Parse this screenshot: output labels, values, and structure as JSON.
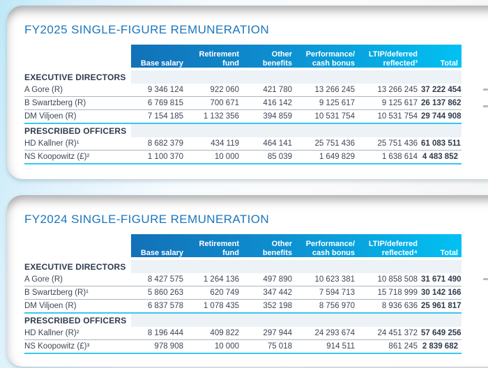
{
  "colors": {
    "title_blue": "#1b76bd",
    "header_gradient_start": "#1371b8",
    "header_gradient_end": "#01c1f3",
    "section_divider_cyan": "#38c7f2",
    "row_divider_gray": "#a9b5bf",
    "page_background_tint": "#bfe8f8"
  },
  "cards": [
    {
      "title": "FY2025 SINGLE-FIGURE REMUNERATION",
      "columns": [
        "Base salary",
        "Retirement\nfund",
        "Other\nbenefits",
        "Performance/\ncash bonus",
        "LTIP/deferred\nreflected³",
        "Total"
      ],
      "sections": [
        {
          "label": "EXECUTIVE DIRECTORS",
          "rows": [
            {
              "name": "A Gore (R)",
              "values": [
                "9 346 124",
                "922 060",
                "421 780",
                "13 266 245",
                "13 266 245",
                "37 222 454"
              ]
            },
            {
              "name": "B Swartzberg (R)",
              "values": [
                "6 769 815",
                "700 671",
                "416 142",
                "9 125 617",
                "9 125 617",
                "26 137 862"
              ]
            },
            {
              "name": "DM Viljoen (R)",
              "values": [
                "7 154 185",
                "1 132 356",
                "394 859",
                "10 531 754",
                "10 531 754",
                "29 744 908"
              ]
            }
          ]
        },
        {
          "label": "PRESCRIBED OFFICERS",
          "rows": [
            {
              "name": "HD Kallner (R)¹",
              "values": [
                "8 682 379",
                "434 119",
                "464 141",
                "25 751 436",
                "25 751 436",
                "61 083 511"
              ]
            },
            {
              "name": "NS Koopowitz (£)²",
              "values": [
                "1 100 370",
                "10 000",
                "85 039",
                "1 649 829",
                "1 638 614",
                "4 483 852"
              ]
            }
          ]
        }
      ]
    },
    {
      "title": "FY2024 SINGLE-FIGURE REMUNERATION",
      "columns": [
        "Base salary",
        "Retirement\nfund",
        "Other\nbenefits",
        "Performance/\ncash bonus",
        "LTIP/deferred\nreflected⁴",
        "Total"
      ],
      "sections": [
        {
          "label": "EXECUTIVE DIRECTORS",
          "rows": [
            {
              "name": "A Gore (R)",
              "values": [
                "8 427 575",
                "1 264 136",
                "497 890",
                "10 623 381",
                "10 858 508",
                "31 671 490"
              ]
            },
            {
              "name": "B Swartzberg (R)¹",
              "values": [
                "5 860 263",
                "620 749",
                "347 442",
                "7 594 713",
                "15 718 999",
                "30 142 166"
              ]
            },
            {
              "name": "DM Viljoen (R)",
              "values": [
                "6 837 578",
                "1 078 435",
                "352 198",
                "8 756 970",
                "8 936 636",
                "25 961 817"
              ]
            }
          ]
        },
        {
          "label": "PRESCRIBED OFFICERS",
          "rows": [
            {
              "name": "HD Kallner (R)²",
              "values": [
                "8 196 444",
                "409 822",
                "297 944",
                "24 293 674",
                "24 451 372",
                "57 649 256"
              ]
            },
            {
              "name": "NS Koopowitz (£)³",
              "values": [
                "978 908",
                "10 000",
                "75 018",
                "914 511",
                "861 245",
                "2 839 682"
              ]
            }
          ]
        }
      ]
    }
  ]
}
